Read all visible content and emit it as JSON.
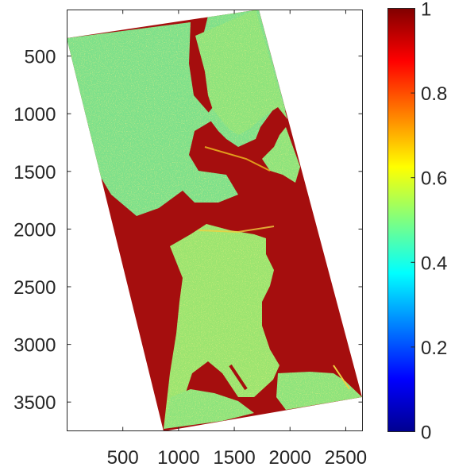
{
  "chart_data": {
    "type": "heatmap",
    "title": "",
    "xlabel": "",
    "ylabel": "",
    "x_ticks": [
      500,
      1000,
      1500,
      2000,
      2500
    ],
    "y_ticks": [
      500,
      1000,
      1500,
      2000,
      2500,
      3000,
      3500
    ],
    "xlim": [
      0,
      2650
    ],
    "ylim": [
      3750,
      100
    ],
    "y_reversed": true,
    "colorbar": {
      "colormap": "jet",
      "range": [
        0,
        1
      ],
      "ticks": [
        0,
        0.2,
        0.4,
        0.6,
        0.8,
        1
      ],
      "tick_labels": [
        "0",
        "0.2",
        "0.4",
        "0.6",
        "0.8",
        "1"
      ]
    },
    "background_value": "no data (white)",
    "dominant_values": {
      "water": 0.95,
      "land": 0.5
    },
    "grid": false
  }
}
